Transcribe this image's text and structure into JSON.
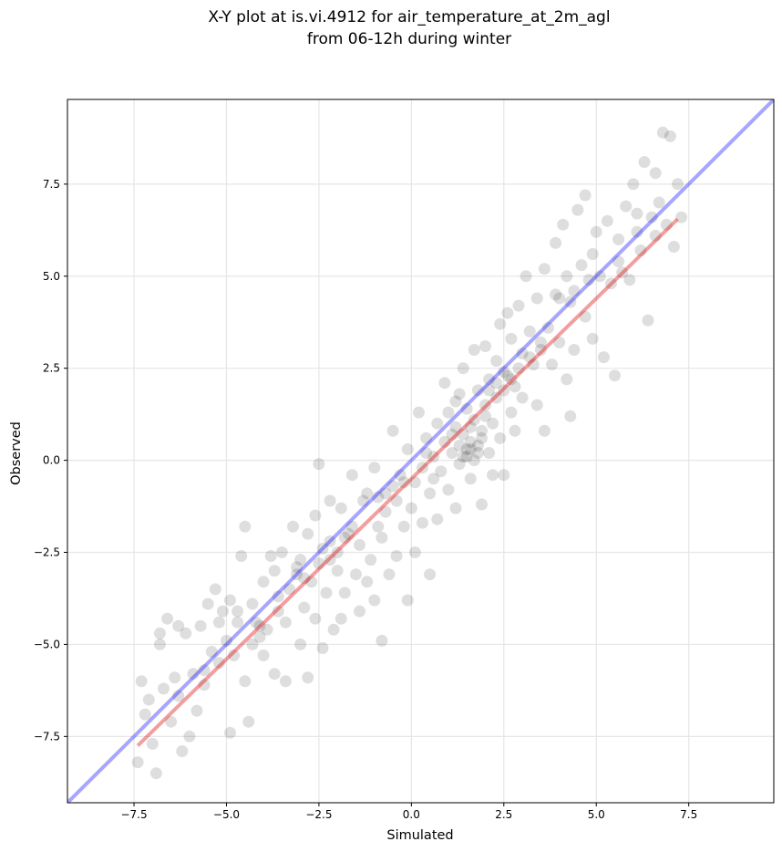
{
  "chart_data": {
    "type": "scatter",
    "title_lines": [
      "X-Y plot at is.vi.4912 for air_temperature_at_2m_agl",
      "from 06-12h during winter"
    ],
    "xlabel": "Simulated",
    "ylabel": "Observed",
    "xlim": [
      -9.3,
      9.8
    ],
    "ylim": [
      -9.3,
      9.8
    ],
    "xticks": [
      -7.5,
      -5.0,
      -2.5,
      0.0,
      2.5,
      5.0,
      7.5
    ],
    "yticks": [
      -7.5,
      -5.0,
      -2.5,
      0.0,
      2.5,
      5.0,
      7.5
    ],
    "xtick_labels": [
      "−7.5",
      "−5.0",
      "−2.5",
      "0.0",
      "2.5",
      "5.0",
      "7.5"
    ],
    "ytick_labels": [
      "−7.5",
      "−5.0",
      "−2.5",
      "0.0",
      "2.5",
      "5.0",
      "7.5"
    ],
    "grid": true,
    "point_color": "#000000",
    "identity_line": {
      "color": "#0000ff",
      "from": [
        -9.3,
        -9.3
      ],
      "to": [
        9.8,
        9.8
      ]
    },
    "fit_line": {
      "color": "#e00000",
      "from": [
        -7.4,
        -7.75
      ],
      "to": [
        7.2,
        6.55
      ]
    },
    "points": [
      [
        -7.4,
        -8.2
      ],
      [
        -7.3,
        -6.0
      ],
      [
        -7.2,
        -6.9
      ],
      [
        -7.1,
        -6.5
      ],
      [
        -7.0,
        -7.7
      ],
      [
        -6.9,
        -8.5
      ],
      [
        -6.8,
        -5.0
      ],
      [
        -6.8,
        -4.7
      ],
      [
        -6.7,
        -6.2
      ],
      [
        -6.6,
        -4.3
      ],
      [
        -6.5,
        -7.1
      ],
      [
        -6.4,
        -5.9
      ],
      [
        -6.3,
        -4.5
      ],
      [
        -6.2,
        -7.9
      ],
      [
        -6.1,
        -4.7
      ],
      [
        -6.0,
        -7.5
      ],
      [
        -5.9,
        -5.8
      ],
      [
        -5.8,
        -6.8
      ],
      [
        -5.7,
        -4.5
      ],
      [
        -5.6,
        -6.1
      ],
      [
        -5.5,
        -3.9
      ],
      [
        -5.4,
        -5.2
      ],
      [
        -5.3,
        -3.5
      ],
      [
        -5.2,
        -5.5
      ],
      [
        -5.2,
        -4.4
      ],
      [
        -5.1,
        -4.1
      ],
      [
        -5.0,
        -4.9
      ],
      [
        -4.9,
        -7.4
      ],
      [
        -4.9,
        -3.8
      ],
      [
        -4.8,
        -5.3
      ],
      [
        -4.7,
        -4.4
      ],
      [
        -4.6,
        -2.6
      ],
      [
        -4.5,
        -6.0
      ],
      [
        -4.5,
        -1.8
      ],
      [
        -4.4,
        -7.1
      ],
      [
        -4.3,
        -5.0
      ],
      [
        -4.3,
        -3.9
      ],
      [
        -4.2,
        -4.4
      ],
      [
        -4.1,
        -4.8
      ],
      [
        -4.0,
        -3.3
      ],
      [
        -4.0,
        -5.3
      ],
      [
        -3.9,
        -4.6
      ],
      [
        -3.8,
        -2.6
      ],
      [
        -3.7,
        -5.8
      ],
      [
        -3.7,
        -3.0
      ],
      [
        -3.6,
        -4.1
      ],
      [
        -3.5,
        -2.5
      ],
      [
        -3.4,
        -6.0
      ],
      [
        -3.4,
        -4.4
      ],
      [
        -3.3,
        -3.5
      ],
      [
        -3.2,
        -1.8
      ],
      [
        -3.1,
        -3.1
      ],
      [
        -3.0,
        -5.0
      ],
      [
        -3.0,
        -2.7
      ],
      [
        -2.9,
        -4.0
      ],
      [
        -2.8,
        -5.9
      ],
      [
        -2.8,
        -2.0
      ],
      [
        -2.7,
        -3.3
      ],
      [
        -2.6,
        -1.5
      ],
      [
        -2.6,
        -4.3
      ],
      [
        -2.5,
        -2.8
      ],
      [
        -2.5,
        -0.1
      ],
      [
        -2.4,
        -5.1
      ],
      [
        -2.3,
        -3.6
      ],
      [
        -2.2,
        -2.2
      ],
      [
        -2.2,
        -1.1
      ],
      [
        -2.1,
        -4.6
      ],
      [
        -2.0,
        -3.0
      ],
      [
        -2.0,
        -2.5
      ],
      [
        -1.9,
        -4.3
      ],
      [
        -1.9,
        -1.3
      ],
      [
        -1.8,
        -3.6
      ],
      [
        -1.7,
        -2.0
      ],
      [
        -1.6,
        -0.4
      ],
      [
        -1.5,
        -3.1
      ],
      [
        -1.4,
        -4.1
      ],
      [
        -1.4,
        -2.3
      ],
      [
        -1.3,
        -1.1
      ],
      [
        -1.2,
        -3.3
      ],
      [
        -1.2,
        -0.9
      ],
      [
        -1.1,
        -2.7
      ],
      [
        -1.0,
        -3.8
      ],
      [
        -1.0,
        -0.2
      ],
      [
        -0.9,
        -1.8
      ],
      [
        -0.8,
        -4.9
      ],
      [
        -0.8,
        -2.1
      ],
      [
        -0.7,
        -1.4
      ],
      [
        -0.6,
        -3.1
      ],
      [
        -0.5,
        -0.7
      ],
      [
        -0.5,
        0.8
      ],
      [
        -0.4,
        -2.6
      ],
      [
        -0.4,
        -1.1
      ],
      [
        -0.3,
        -0.4
      ],
      [
        -0.2,
        -1.8
      ],
      [
        -0.1,
        -3.8
      ],
      [
        -0.1,
        0.3
      ],
      [
        0.0,
        -1.3
      ],
      [
        0.1,
        -0.6
      ],
      [
        0.1,
        -2.5
      ],
      [
        0.2,
        1.3
      ],
      [
        0.3,
        -0.2
      ],
      [
        0.3,
        -1.7
      ],
      [
        0.4,
        0.6
      ],
      [
        0.5,
        -3.1
      ],
      [
        0.5,
        -0.9
      ],
      [
        0.6,
        0.1
      ],
      [
        0.7,
        1.0
      ],
      [
        0.7,
        -1.6
      ],
      [
        0.8,
        -0.3
      ],
      [
        0.9,
        0.5
      ],
      [
        0.9,
        2.1
      ],
      [
        1.0,
        -0.8
      ],
      [
        1.0,
        1.3
      ],
      [
        1.1,
        0.2
      ],
      [
        1.2,
        -1.3
      ],
      [
        1.2,
        0.9
      ],
      [
        1.3,
        1.8
      ],
      [
        1.3,
        -0.1
      ],
      [
        1.4,
        0.7
      ],
      [
        1.4,
        2.5
      ],
      [
        1.5,
        0.1
      ],
      [
        1.5,
        1.4
      ],
      [
        1.6,
        -0.5
      ],
      [
        1.6,
        0.3
      ],
      [
        1.7,
        1.1
      ],
      [
        1.7,
        3.0
      ],
      [
        1.8,
        0.4
      ],
      [
        1.8,
        1.9
      ],
      [
        1.9,
        -1.2
      ],
      [
        1.9,
        0.8
      ],
      [
        2.0,
        1.5
      ],
      [
        2.0,
        3.1
      ],
      [
        2.1,
        0.2
      ],
      [
        2.1,
        2.2
      ],
      [
        2.2,
        1.0
      ],
      [
        2.2,
        -0.4
      ],
      [
        2.3,
        1.7
      ],
      [
        2.3,
        2.7
      ],
      [
        2.4,
        0.6
      ],
      [
        2.4,
        3.7
      ],
      [
        2.5,
        1.9
      ],
      [
        2.5,
        -0.4
      ],
      [
        2.6,
        2.3
      ],
      [
        2.6,
        4.0
      ],
      [
        2.7,
        1.3
      ],
      [
        2.7,
        3.3
      ],
      [
        2.8,
        0.8
      ],
      [
        2.8,
        2.0
      ],
      [
        2.9,
        4.2
      ],
      [
        3.0,
        1.7
      ],
      [
        3.0,
        2.9
      ],
      [
        3.1,
        5.0
      ],
      [
        3.2,
        3.5
      ],
      [
        3.3,
        2.6
      ],
      [
        3.4,
        1.5
      ],
      [
        3.4,
        4.4
      ],
      [
        3.5,
        3.0
      ],
      [
        3.6,
        0.8
      ],
      [
        3.6,
        5.2
      ],
      [
        3.7,
        3.6
      ],
      [
        3.8,
        2.6
      ],
      [
        3.9,
        5.9
      ],
      [
        3.9,
        4.5
      ],
      [
        4.0,
        3.2
      ],
      [
        4.1,
        6.4
      ],
      [
        4.2,
        2.2
      ],
      [
        4.2,
        5.0
      ],
      [
        4.3,
        1.2
      ],
      [
        4.3,
        4.3
      ],
      [
        4.4,
        3.0
      ],
      [
        4.5,
        6.8
      ],
      [
        4.6,
        5.3
      ],
      [
        4.7,
        3.9
      ],
      [
        4.7,
        7.2
      ],
      [
        4.8,
        4.9
      ],
      [
        4.9,
        3.3
      ],
      [
        5.0,
        6.2
      ],
      [
        5.1,
        5.0
      ],
      [
        5.2,
        2.8
      ],
      [
        5.3,
        6.5
      ],
      [
        5.4,
        4.8
      ],
      [
        5.5,
        2.3
      ],
      [
        5.6,
        6.0
      ],
      [
        5.7,
        5.1
      ],
      [
        5.8,
        6.9
      ],
      [
        5.9,
        4.9
      ],
      [
        6.0,
        7.5
      ],
      [
        6.1,
        6.2
      ],
      [
        6.2,
        5.7
      ],
      [
        6.3,
        8.1
      ],
      [
        6.4,
        3.8
      ],
      [
        6.5,
        6.6
      ],
      [
        6.6,
        7.8
      ],
      [
        6.7,
        7.0
      ],
      [
        6.8,
        8.9
      ],
      [
        6.9,
        6.4
      ],
      [
        7.0,
        8.8
      ],
      [
        7.1,
        5.8
      ],
      [
        7.2,
        7.5
      ],
      [
        7.3,
        6.6
      ],
      [
        -2.9,
        -3.2
      ],
      [
        -2.4,
        -2.4
      ],
      [
        -1.6,
        -1.8
      ],
      [
        -0.9,
        -1.0
      ],
      [
        -0.2,
        -0.6
      ],
      [
        0.6,
        -0.5
      ],
      [
        1.1,
        0.7
      ],
      [
        1.4,
        0.1
      ],
      [
        1.6,
        0.5
      ],
      [
        1.8,
        0.2
      ],
      [
        2.0,
        1.2
      ],
      [
        2.1,
        1.9
      ],
      [
        2.3,
        2.1
      ],
      [
        2.5,
        2.4
      ],
      [
        2.7,
        2.2
      ],
      [
        1.5,
        0.3
      ],
      [
        1.7,
        0.0
      ],
      [
        1.9,
        0.6
      ],
      [
        1.3,
        0.4
      ],
      [
        1.6,
        0.9
      ],
      [
        -4.7,
        -4.1
      ],
      [
        -3.6,
        -3.7
      ],
      [
        -3.1,
        -2.9
      ],
      [
        -2.2,
        -2.7
      ],
      [
        -1.8,
        -2.1
      ],
      [
        -4.1,
        -4.5
      ],
      [
        -5.6,
        -5.7
      ],
      [
        -6.3,
        -6.4
      ],
      [
        -0.7,
        -0.9
      ],
      [
        0.4,
        0.2
      ],
      [
        2.9,
        2.5
      ],
      [
        3.2,
        2.8
      ],
      [
        3.5,
        3.2
      ],
      [
        4.0,
        4.4
      ],
      [
        4.4,
        4.6
      ],
      [
        4.9,
        5.6
      ],
      [
        5.6,
        5.4
      ],
      [
        6.1,
        6.7
      ],
      [
        6.6,
        6.1
      ],
      [
        1.2,
        1.6
      ]
    ]
  }
}
